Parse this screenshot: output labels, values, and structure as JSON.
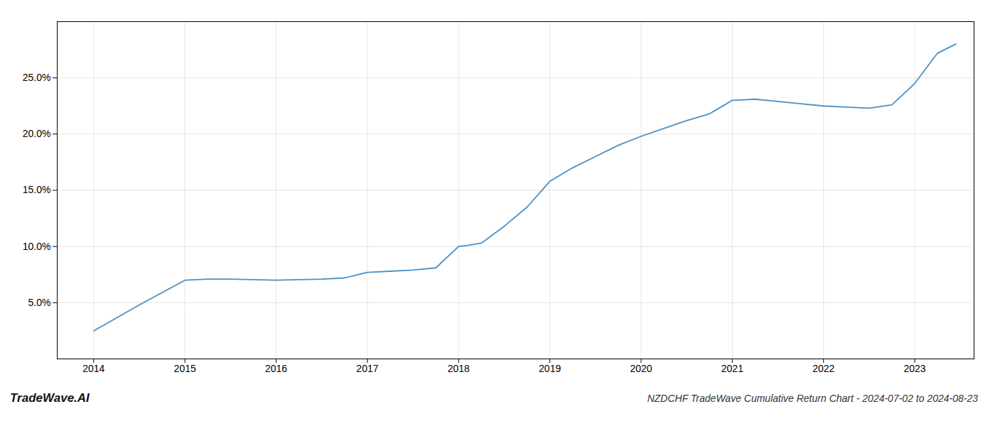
{
  "chart_data": {
    "type": "line",
    "title": "NZDCHF TradeWave Cumulative Return Chart - 2024-07-02 to 2024-08-23",
    "annotations": [
      "TradeWave.AI"
    ],
    "color": "#4a90c4",
    "x": [
      2014.0,
      2014.5,
      2015.0,
      2015.25,
      2015.5,
      2015.75,
      2016.0,
      2016.25,
      2016.5,
      2016.75,
      2017.0,
      2017.25,
      2017.5,
      2017.75,
      2018.0,
      2018.1,
      2018.25,
      2018.5,
      2018.75,
      2019.0,
      2019.25,
      2019.5,
      2019.75,
      2020.0,
      2020.25,
      2020.5,
      2020.75,
      2021.0,
      2021.25,
      2021.5,
      2021.75,
      2022.0,
      2022.25,
      2022.5,
      2022.75,
      2023.0,
      2023.25,
      2023.45
    ],
    "values": [
      2.5,
      4.8,
      7.0,
      7.1,
      7.1,
      7.05,
      7.0,
      7.05,
      7.1,
      7.2,
      7.7,
      7.8,
      7.9,
      8.1,
      10.0,
      10.1,
      10.3,
      11.8,
      13.5,
      15.8,
      17.0,
      18.0,
      19.0,
      19.8,
      20.5,
      21.2,
      21.8,
      23.0,
      23.1,
      22.9,
      22.7,
      22.5,
      22.4,
      22.3,
      22.6,
      24.5,
      27.2,
      28.0
    ],
    "xlim": [
      2013.6,
      2023.65
    ],
    "ylim": [
      0,
      30
    ],
    "xticks": [
      2014,
      2015,
      2016,
      2017,
      2018,
      2019,
      2020,
      2021,
      2022,
      2023
    ],
    "yticks": [
      {
        "value": 5.0,
        "label": "5.0%"
      },
      {
        "value": 10.0,
        "label": "10.0%"
      },
      {
        "value": 15.0,
        "label": "15.0%"
      },
      {
        "value": 20.0,
        "label": "20.0%"
      },
      {
        "value": 25.0,
        "label": "25.0%"
      }
    ],
    "grid": true
  }
}
